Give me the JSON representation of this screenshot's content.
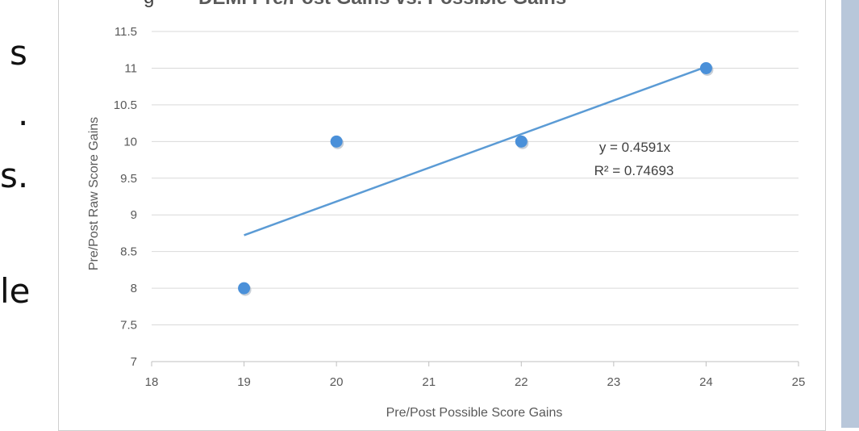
{
  "slide": {
    "left_fragments": [
      "s",
      ".",
      "s.",
      "le"
    ],
    "heading_fragment": "g",
    "chart_title_fragment": "DEMI Pre/Post Gains vs. Possible Gains"
  },
  "chart_data": {
    "type": "scatter",
    "title": "DEMI Pre/Post Gains vs. Possible Gains",
    "xlabel": "Pre/Post Possible Score Gains",
    "ylabel": "Pre/Post Raw Score Gains",
    "xlim": [
      18,
      25
    ],
    "ylim": [
      7,
      11.5
    ],
    "xticks": [
      "18",
      "19",
      "20",
      "21",
      "22",
      "23",
      "24",
      "25"
    ],
    "yticks": [
      "11.5",
      "11",
      "10.5",
      "10",
      "9.5",
      "9",
      "8.5",
      "8",
      "7.5",
      "7"
    ],
    "grid": true,
    "series": [
      {
        "points": [
          {
            "x": 19,
            "y": 8
          },
          {
            "x": 20,
            "y": 10
          },
          {
            "x": 22,
            "y": 10
          },
          {
            "x": 24,
            "y": 11
          }
        ],
        "color": "#4a90d9"
      }
    ],
    "trendline": {
      "slope": 0.4591,
      "x_range": [
        19,
        24
      ],
      "color": "#5b9bd5"
    },
    "annotations": [
      "y = 0.4591x",
      "R² = 0.74693"
    ]
  }
}
